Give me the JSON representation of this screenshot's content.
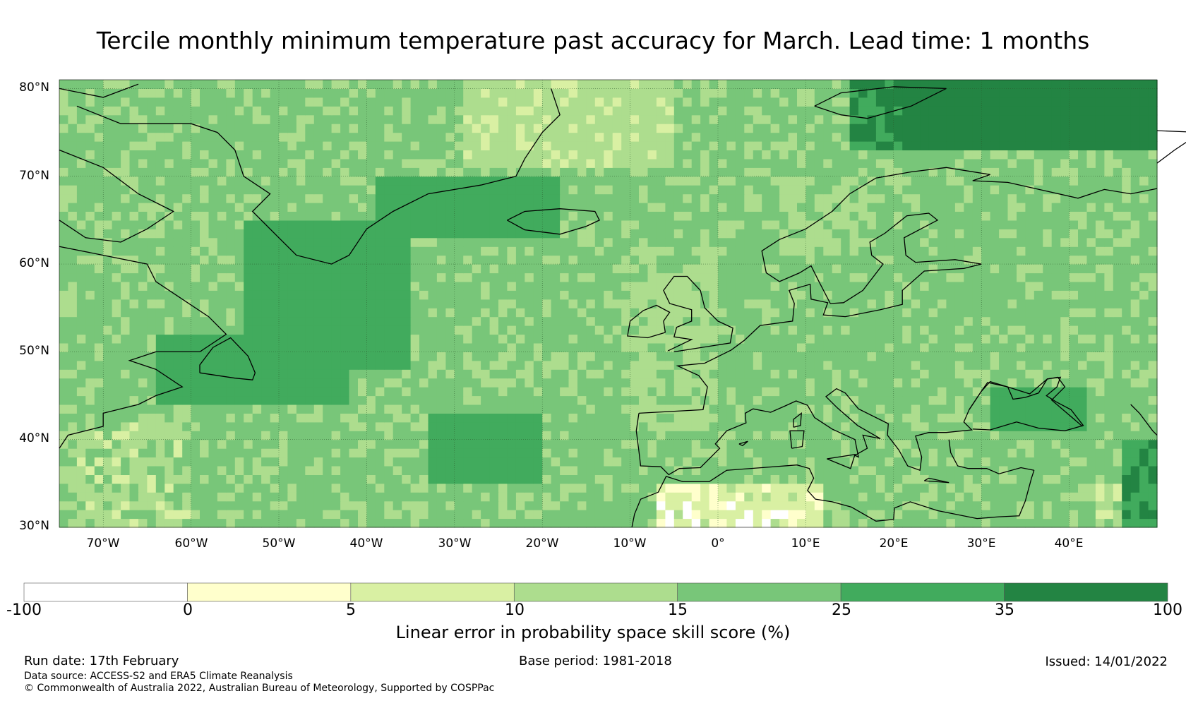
{
  "title": "Tercile monthly minimum temperature past accuracy for March. Lead time: 1 months",
  "map": {
    "region": "North Atlantic and Europe",
    "lon_range": [
      -75,
      50
    ],
    "lat_range": [
      30,
      81
    ],
    "lat_labels": [
      "80°N",
      "70°N",
      "60°N",
      "50°N",
      "40°N",
      "30°N"
    ],
    "lon_labels": [
      "70°W",
      "60°W",
      "50°W",
      "40°W",
      "30°W",
      "20°W",
      "10°W",
      "0°",
      "10°E",
      "20°E",
      "30°E",
      "40°E"
    ]
  },
  "colorbar": {
    "bins": [
      {
        "from": -100,
        "to": 0,
        "color": "#ffffff"
      },
      {
        "from": 0,
        "to": 5,
        "color": "#ffffcc"
      },
      {
        "from": 5,
        "to": 10,
        "color": "#d9f0a3"
      },
      {
        "from": 10,
        "to": 15,
        "color": "#addd8e"
      },
      {
        "from": 15,
        "to": 25,
        "color": "#78c679"
      },
      {
        "from": 25,
        "to": 35,
        "color": "#41ab5d"
      },
      {
        "from": 35,
        "to": 100,
        "color": "#238443"
      }
    ],
    "tick_labels": [
      "-100",
      "0",
      "5",
      "10",
      "15",
      "25",
      "35",
      "100"
    ],
    "label": "Linear error in probability space skill score (%)"
  },
  "footer": {
    "run_date": "Run date: 17th February",
    "base_period": "Base period: 1981-2018",
    "issued": "Issued: 14/01/2022",
    "data_source": "Data source: ACCESS-S2 and ERA5 Climate Reanalysis",
    "copyright": "© Commonwealth of Australia 2022, Australian Bureau of Meteorology, Supported by COSPPac"
  }
}
